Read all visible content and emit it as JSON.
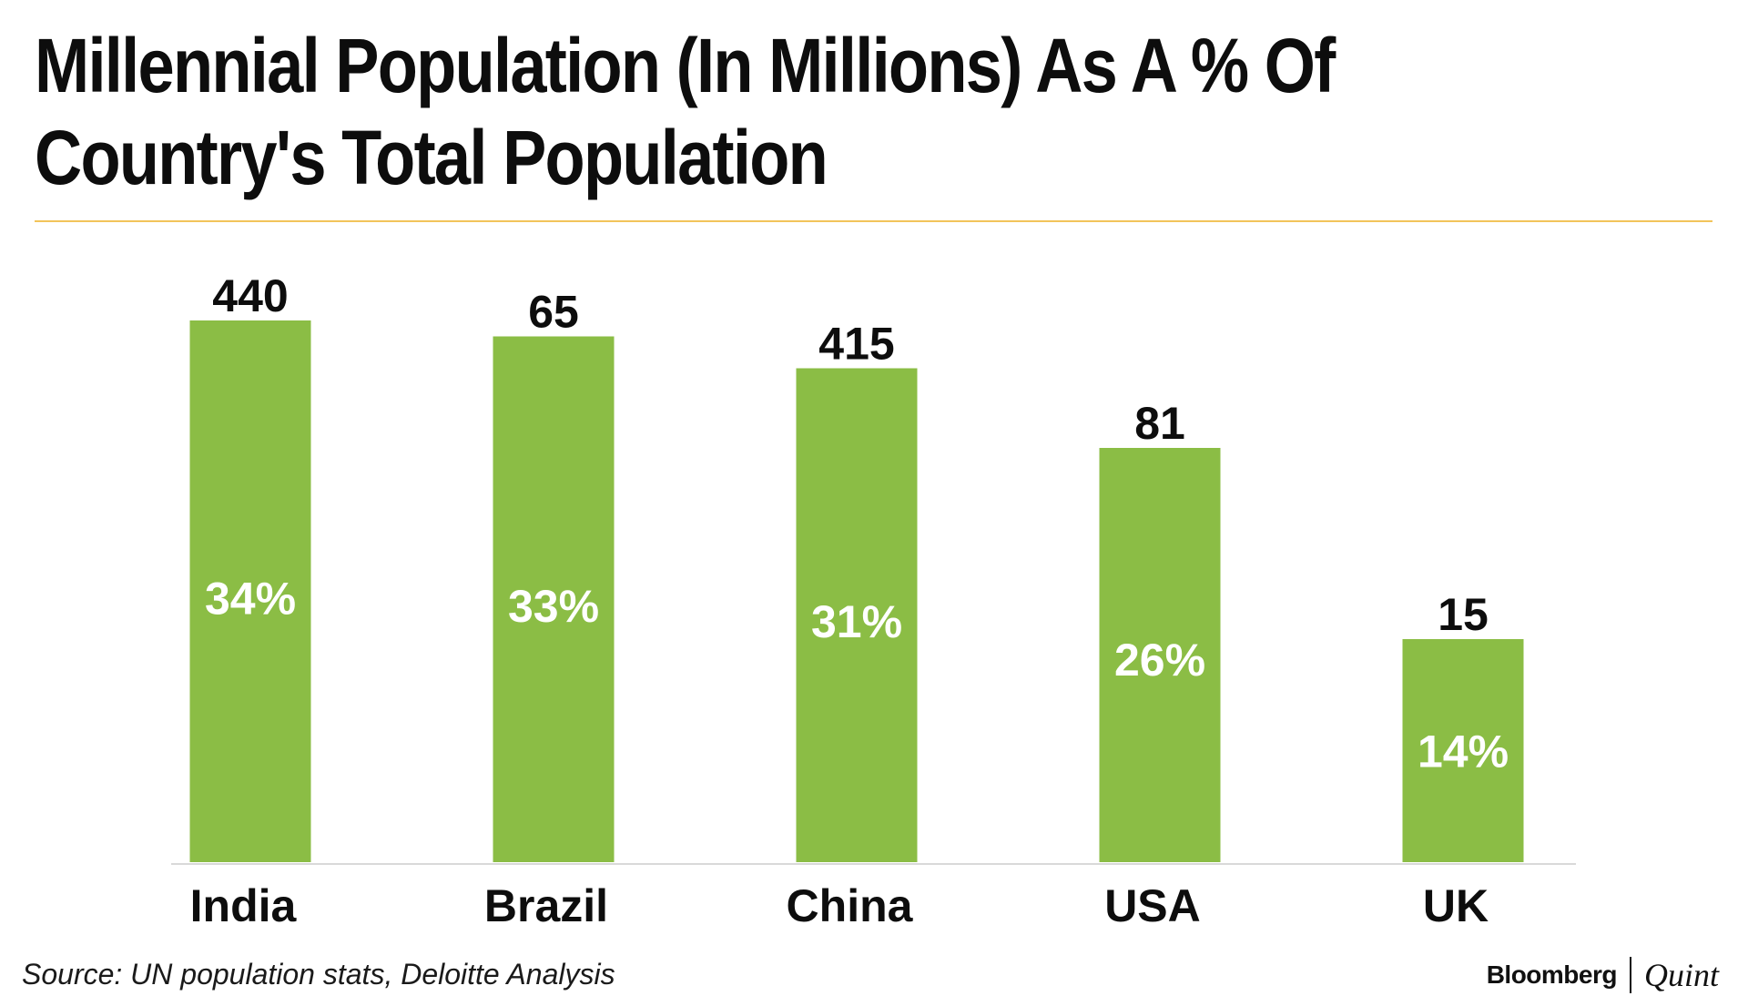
{
  "title": "Millennial Population (In Millions) As A % Of Country's Total Population",
  "source": "Source: UN population stats, Deloitte Analysis",
  "brand": {
    "primary": "Bloomberg",
    "secondary": "Quint"
  },
  "colors": {
    "bar": "#8bbd45",
    "rule": "#f2c45a"
  },
  "chart_data": {
    "type": "bar",
    "title": "Millennial Population (In Millions) As A % Of Country's Total Population",
    "categories": [
      "India",
      "Brazil",
      "China",
      "USA",
      "UK"
    ],
    "series": [
      {
        "name": "Millennial population as % of total population",
        "values": [
          34,
          33,
          31,
          26,
          14
        ],
        "value_labels": [
          "34%",
          "33%",
          "31%",
          "26%",
          "14%"
        ]
      },
      {
        "name": "Millennial population (millions)",
        "values": [
          440,
          65,
          415,
          81,
          15
        ],
        "value_labels": [
          "440",
          "65",
          "415",
          "81",
          "15"
        ]
      }
    ],
    "bar_height_series": "Millennial population as % of total population",
    "xlabel": "",
    "ylabel": "",
    "ylim": [
      0,
      36
    ],
    "grid": false,
    "legend": "none"
  }
}
